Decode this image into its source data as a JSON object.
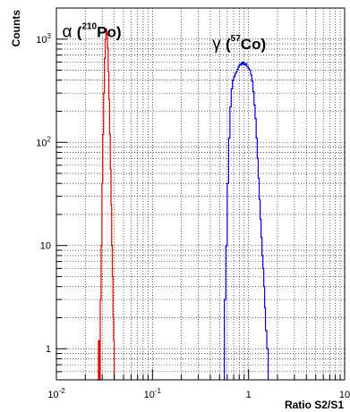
{
  "chart_data": {
    "type": "histogram",
    "title": "",
    "xlabel": "Ratio S2/S1",
    "ylabel": "Counts",
    "x_scale": "log",
    "y_scale": "log",
    "xlim": [
      0.01,
      10
    ],
    "ylim": [
      0.5,
      2000
    ],
    "grid": true,
    "x_ticks": [
      {
        "value": 0.01,
        "base": "10",
        "exp": "-2"
      },
      {
        "value": 0.1,
        "base": "10",
        "exp": "-1"
      },
      {
        "value": 1,
        "base": "1",
        "exp": ""
      },
      {
        "value": 10,
        "base": "10",
        "exp": ""
      }
    ],
    "y_ticks": [
      {
        "value": 1,
        "base": "1",
        "exp": ""
      },
      {
        "value": 10,
        "base": "10",
        "exp": ""
      },
      {
        "value": 100,
        "base": "10",
        "exp": "2"
      },
      {
        "value": 1000,
        "base": "10",
        "exp": "3"
      }
    ],
    "series": [
      {
        "color": "#e00000",
        "points": [
          [
            0.0264,
            0.5
          ],
          [
            0.0274,
            1.2
          ],
          [
            0.028,
            0.5
          ],
          [
            0.0286,
            3
          ],
          [
            0.0292,
            10
          ],
          [
            0.0298,
            40
          ],
          [
            0.0304,
            120
          ],
          [
            0.031,
            300
          ],
          [
            0.0316,
            650
          ],
          [
            0.0322,
            1000
          ],
          [
            0.0328,
            1250
          ],
          [
            0.0334,
            1100
          ],
          [
            0.034,
            820
          ],
          [
            0.0346,
            480
          ],
          [
            0.0352,
            260
          ],
          [
            0.0358,
            120
          ],
          [
            0.0364,
            55
          ],
          [
            0.037,
            25
          ],
          [
            0.0376,
            10
          ],
          [
            0.0382,
            5
          ],
          [
            0.0388,
            2
          ],
          [
            0.0394,
            1.2
          ],
          [
            0.04,
            0.5
          ]
        ]
      },
      {
        "color": "#0000cc",
        "points": [
          [
            0.55,
            0.5
          ],
          [
            0.56,
            3
          ],
          [
            0.58,
            10
          ],
          [
            0.6,
            40
          ],
          [
            0.62,
            110
          ],
          [
            0.64,
            220
          ],
          [
            0.66,
            330
          ],
          [
            0.68,
            400
          ],
          [
            0.7,
            430
          ],
          [
            0.72,
            460
          ],
          [
            0.74,
            480
          ],
          [
            0.76,
            510
          ],
          [
            0.78,
            540
          ],
          [
            0.8,
            570
          ],
          [
            0.82,
            560
          ],
          [
            0.84,
            590
          ],
          [
            0.86,
            570
          ],
          [
            0.88,
            600
          ],
          [
            0.9,
            560
          ],
          [
            0.93,
            580
          ],
          [
            0.96,
            540
          ],
          [
            0.99,
            520
          ],
          [
            1.02,
            500
          ],
          [
            1.05,
            450
          ],
          [
            1.08,
            390
          ],
          [
            1.11,
            310
          ],
          [
            1.14,
            230
          ],
          [
            1.17,
            170
          ],
          [
            1.2,
            110
          ],
          [
            1.23,
            70
          ],
          [
            1.26,
            45
          ],
          [
            1.29,
            28
          ],
          [
            1.32,
            18
          ],
          [
            1.35,
            12
          ],
          [
            1.38,
            8
          ],
          [
            1.41,
            6
          ],
          [
            1.44,
            4
          ],
          [
            1.47,
            2.5
          ],
          [
            1.5,
            1.5
          ],
          [
            1.55,
            1
          ],
          [
            1.6,
            0.5
          ]
        ]
      }
    ],
    "annotations": [
      {
        "id": "alpha",
        "greek": "α",
        "open": "(",
        "sup": "210",
        "element": "Po",
        "close": ")",
        "x": 0.0115,
        "y": 1050
      },
      {
        "id": "gamma",
        "greek": "γ",
        "open": "(",
        "sup": "57",
        "element": "Co",
        "close": ")",
        "x": 0.42,
        "y": 800
      }
    ]
  }
}
